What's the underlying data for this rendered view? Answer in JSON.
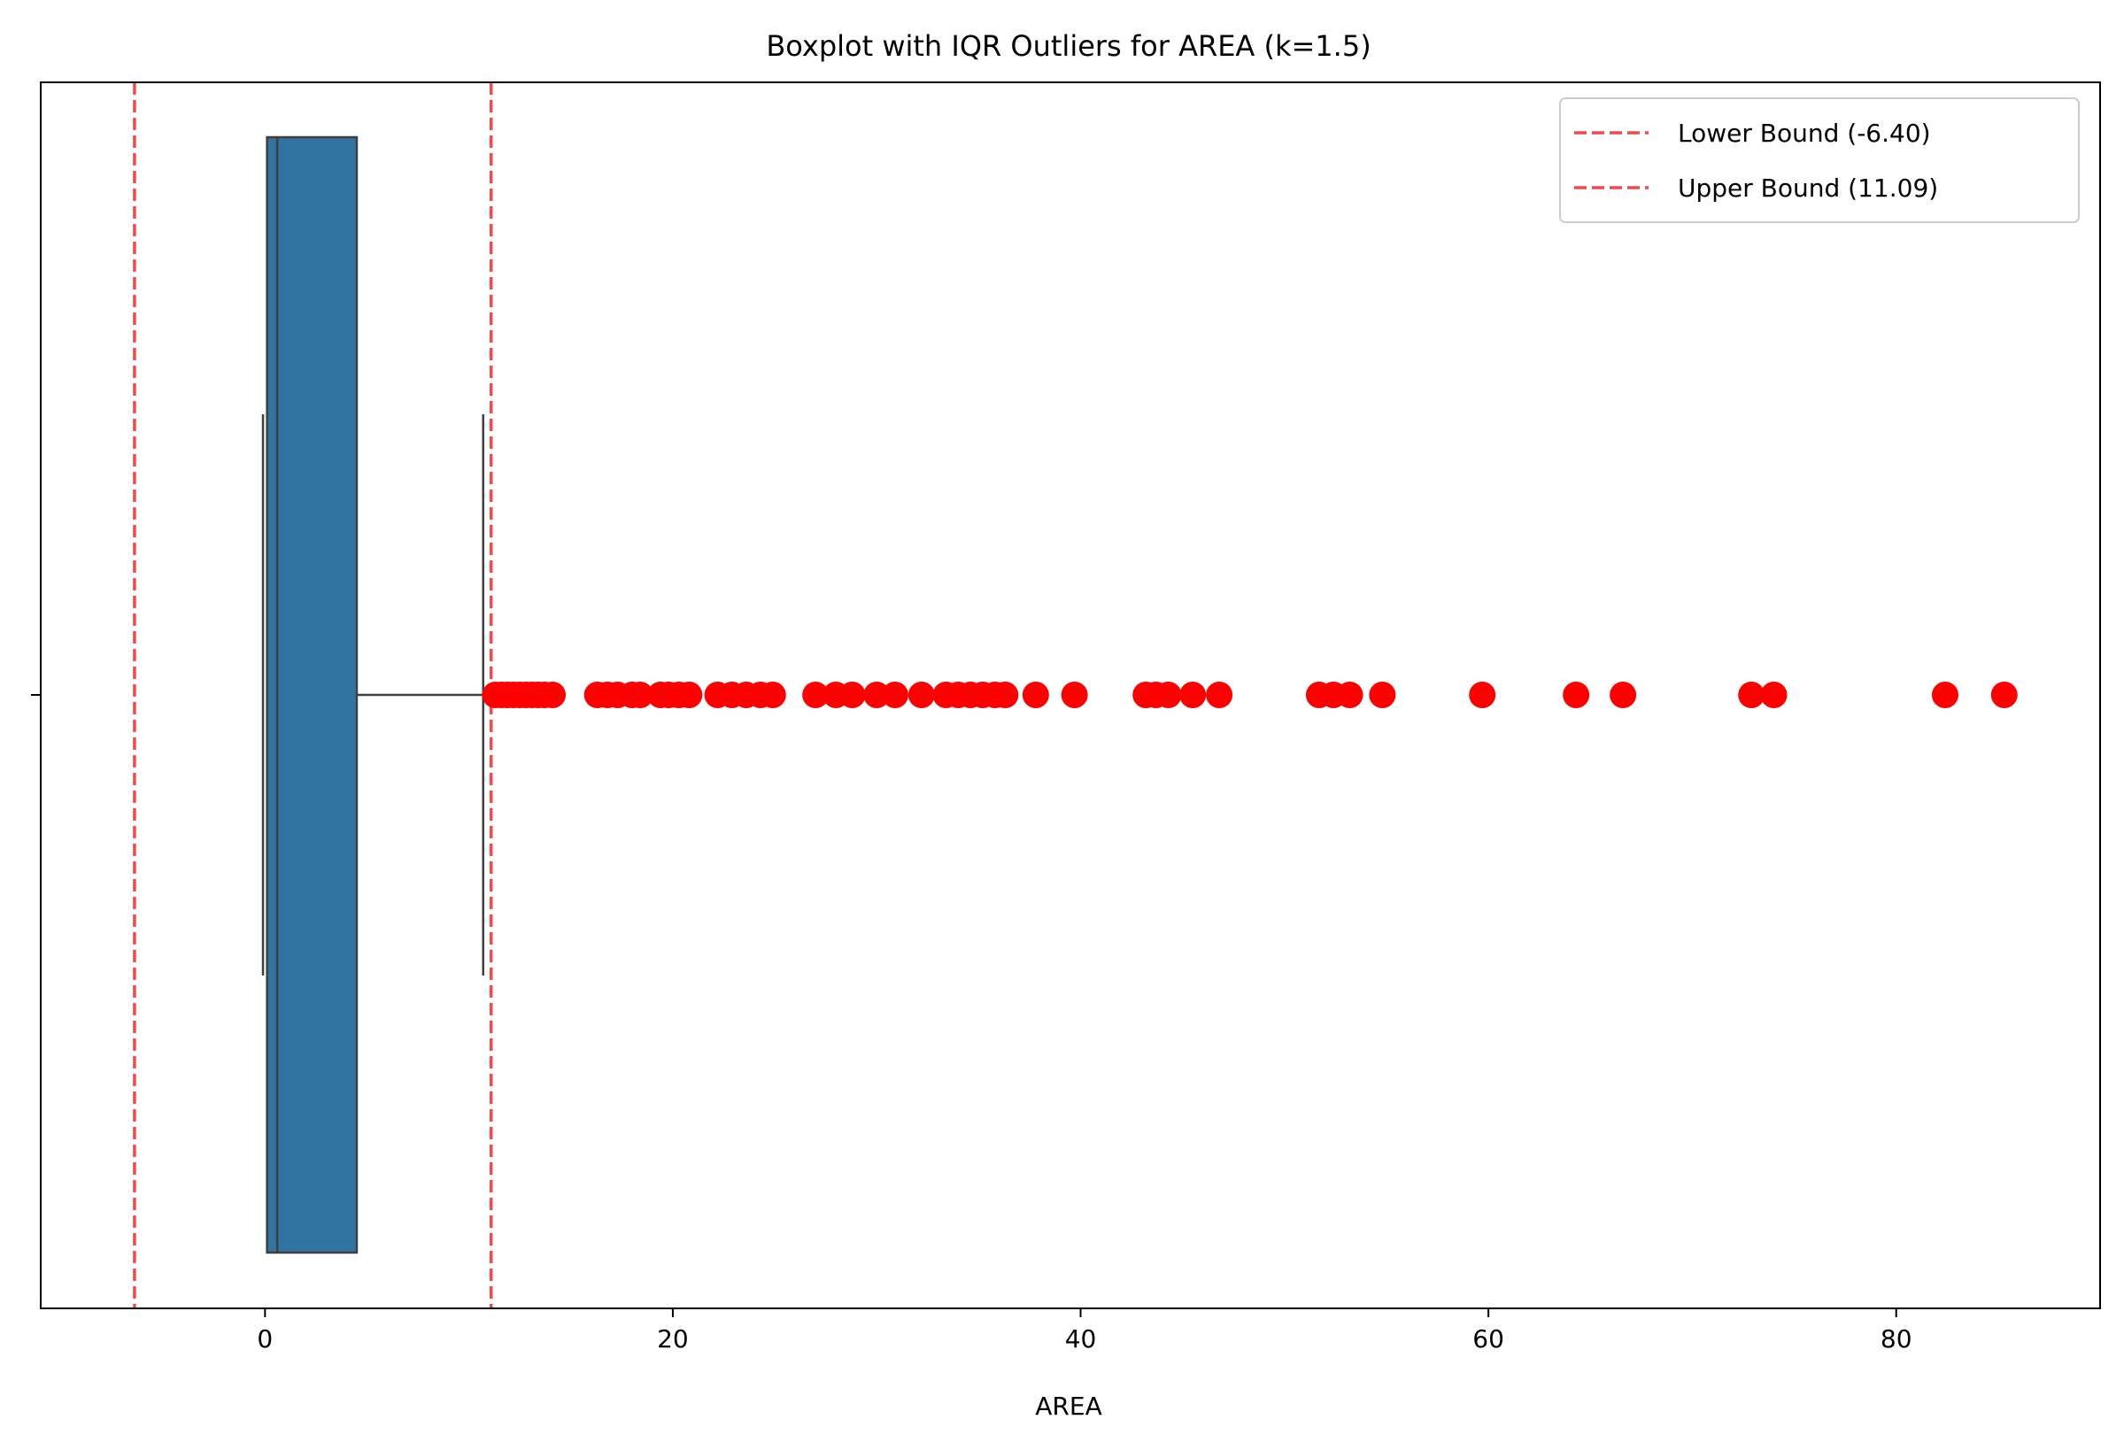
{
  "chart_data": {
    "type": "boxplot",
    "title": "Boxplot with IQR Outliers for AREA (k=1.5)",
    "xlabel": "AREA",
    "ylabel": "",
    "xlim": [
      -11,
      90
    ],
    "xticks": [
      0,
      20,
      40,
      60,
      80
    ],
    "grid": false,
    "legend_position": "upper right",
    "box": {
      "whisker_low": -0.1,
      "q1": 0.1,
      "median": 0.6,
      "q3": 4.5,
      "whisker_high": 10.7,
      "color": "#3274a1",
      "edge_color": "#3f3f3f"
    },
    "bounds": [
      {
        "name": "Lower Bound (-6.40)",
        "value": -6.4,
        "color": "#f24a4a"
      },
      {
        "name": "Upper Bound (11.09)",
        "value": 11.09,
        "color": "#f24a4a"
      }
    ],
    "outliers": {
      "color": "#ff0000",
      "values": [
        11.3,
        11.6,
        11.9,
        12.2,
        12.5,
        12.8,
        13.1,
        13.4,
        13.7,
        14.1,
        16.3,
        16.8,
        17.3,
        18.0,
        18.4,
        19.4,
        19.8,
        20.3,
        20.8,
        22.2,
        22.9,
        23.6,
        24.3,
        24.9,
        27.0,
        28.0,
        28.8,
        30.0,
        30.9,
        32.2,
        33.4,
        34.0,
        34.6,
        35.2,
        35.8,
        36.3,
        37.8,
        39.7,
        43.2,
        43.7,
        44.3,
        45.5,
        46.8,
        51.7,
        52.4,
        53.2,
        54.8,
        59.7,
        64.3,
        66.6,
        72.9,
        74.0,
        82.4,
        85.3
      ]
    }
  }
}
